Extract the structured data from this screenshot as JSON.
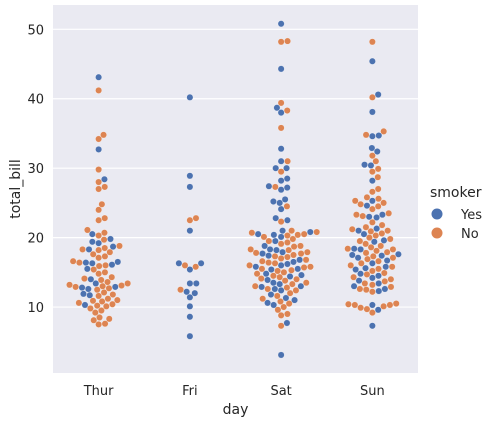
{
  "chart_data": {
    "type": "scatter",
    "style": "seaborn swarmplot (catplot, kind=swarm)",
    "xlabel": "day",
    "ylabel": "total_bill",
    "categories": [
      "Thur",
      "Fri",
      "Sat",
      "Sun"
    ],
    "ylim": [
      0.5,
      53.5
    ],
    "yticks": [
      10,
      20,
      30,
      40,
      50
    ],
    "grid": true,
    "legend": {
      "title": "smoker",
      "placement": "right"
    },
    "series": [
      {
        "name": "Yes",
        "color": "#4c72b0",
        "values": {
          "Thur": [
            43.1,
            32.7,
            28.4,
            20.5,
            19.8,
            19.4,
            19.2,
            18.7,
            18.3,
            16.5,
            16.4,
            16.3,
            16.1,
            15.5,
            14.0,
            13.4,
            12.9,
            12.8,
            12.6,
            11.9,
            11.7,
            10.3
          ],
          "Fri": [
            40.2,
            28.9,
            27.3,
            21.0,
            16.3,
            16.3,
            15.4,
            13.4,
            13.4,
            12.2,
            12.0,
            11.4,
            10.1,
            8.6,
            5.8
          ],
          "Sat": [
            50.8,
            44.3,
            38.7,
            38.0,
            32.8,
            31.0,
            30.0,
            30.0,
            28.5,
            28.2,
            27.4,
            27.2,
            26.9,
            25.5,
            25.2,
            25.0,
            24.1,
            22.8,
            22.5,
            21.0,
            20.8,
            20.5,
            20.4,
            20.1,
            19.5,
            18.8,
            18.3,
            18.2,
            17.9,
            17.7,
            17.4,
            16.8,
            16.5,
            16.2,
            16.0,
            15.8,
            15.5,
            15.4,
            14.8,
            14.6,
            14.4,
            13.9,
            13.5,
            13.3,
            13.0,
            12.9,
            12.6,
            12.4,
            11.8,
            11.3,
            11.0,
            10.6,
            10.3,
            7.7,
            3.1
          ],
          "Sun": [
            45.4,
            40.6,
            38.1,
            34.7,
            34.6,
            32.9,
            32.4,
            30.5,
            30.4,
            28.2,
            25.3,
            24.6,
            23.3,
            23.0,
            22.9,
            21.3,
            21.0,
            20.5,
            19.6,
            19.4,
            18.4,
            18.3,
            17.6,
            17.5,
            17.4,
            17.1,
            16.7,
            16.3,
            15.8,
            15.6,
            15.4,
            14.8,
            14.5,
            14.2,
            13.8,
            13.4,
            13.0,
            12.6,
            12.3,
            10.3,
            9.6,
            7.3
          ]
        }
      },
      {
        "name": "No",
        "color": "#dd8452",
        "values": {
          "Thur": [
            41.2,
            34.8,
            34.2,
            29.8,
            28.0,
            27.3,
            27.0,
            24.8,
            24.0,
            22.8,
            22.5,
            21.1,
            20.7,
            20.3,
            19.7,
            18.8,
            18.5,
            18.3,
            18.2,
            17.9,
            17.6,
            17.3,
            17.1,
            16.6,
            16.4,
            16.0,
            15.9,
            15.4,
            15.0,
            14.8,
            14.3,
            14.1,
            13.9,
            13.6,
            13.4,
            13.2,
            13.1,
            13.0,
            12.9,
            12.7,
            12.5,
            12.1,
            11.8,
            11.6,
            11.2,
            11.0,
            10.9,
            10.8,
            10.6,
            10.4,
            10.2,
            10.1,
            9.8,
            9.5,
            9.2,
            8.5,
            8.3,
            8.1,
            7.6,
            7.5
          ],
          "Fri": [
            22.8,
            22.5,
            16.0,
            15.8,
            12.5
          ],
          "Sat": [
            48.3,
            48.2,
            39.4,
            38.3,
            35.8,
            31.0,
            29.5,
            27.3,
            24.5,
            22.3,
            21.0,
            20.8,
            20.7,
            20.5,
            20.4,
            20.3,
            20.1,
            19.8,
            19.5,
            19.3,
            19.1,
            18.8,
            18.7,
            18.3,
            18.2,
            17.9,
            17.8,
            17.7,
            17.5,
            17.3,
            17.2,
            17.0,
            16.8,
            16.6,
            16.4,
            16.3,
            16.0,
            15.8,
            15.7,
            15.5,
            15.3,
            15.2,
            15.0,
            14.8,
            14.5,
            14.3,
            14.1,
            14.0,
            13.8,
            13.5,
            13.3,
            13.0,
            12.8,
            12.6,
            12.4,
            12.0,
            11.6,
            11.2,
            10.8,
            10.5,
            10.0,
            9.6,
            9.0,
            8.8,
            7.3
          ],
          "Sun": [
            48.2,
            40.2,
            35.3,
            34.8,
            31.8,
            31.0,
            29.9,
            29.5,
            28.7,
            27.0,
            26.6,
            25.8,
            25.6,
            25.3,
            25.0,
            24.8,
            24.5,
            24.1,
            23.5,
            23.3,
            23.1,
            22.2,
            21.8,
            21.5,
            21.2,
            21.0,
            20.9,
            20.6,
            20.3,
            20.0,
            19.8,
            19.5,
            19.1,
            18.8,
            18.6,
            18.4,
            18.3,
            18.1,
            17.9,
            17.8,
            17.3,
            17.1,
            16.9,
            16.6,
            16.3,
            16.0,
            15.8,
            15.5,
            15.2,
            14.9,
            14.7,
            14.3,
            14.0,
            13.7,
            13.4,
            13.2,
            12.9,
            12.6,
            12.5,
            12.2,
            10.5,
            10.4,
            10.3,
            10.3,
            10.1,
            9.9,
            9.7,
            9.2
          ]
        }
      }
    ]
  }
}
